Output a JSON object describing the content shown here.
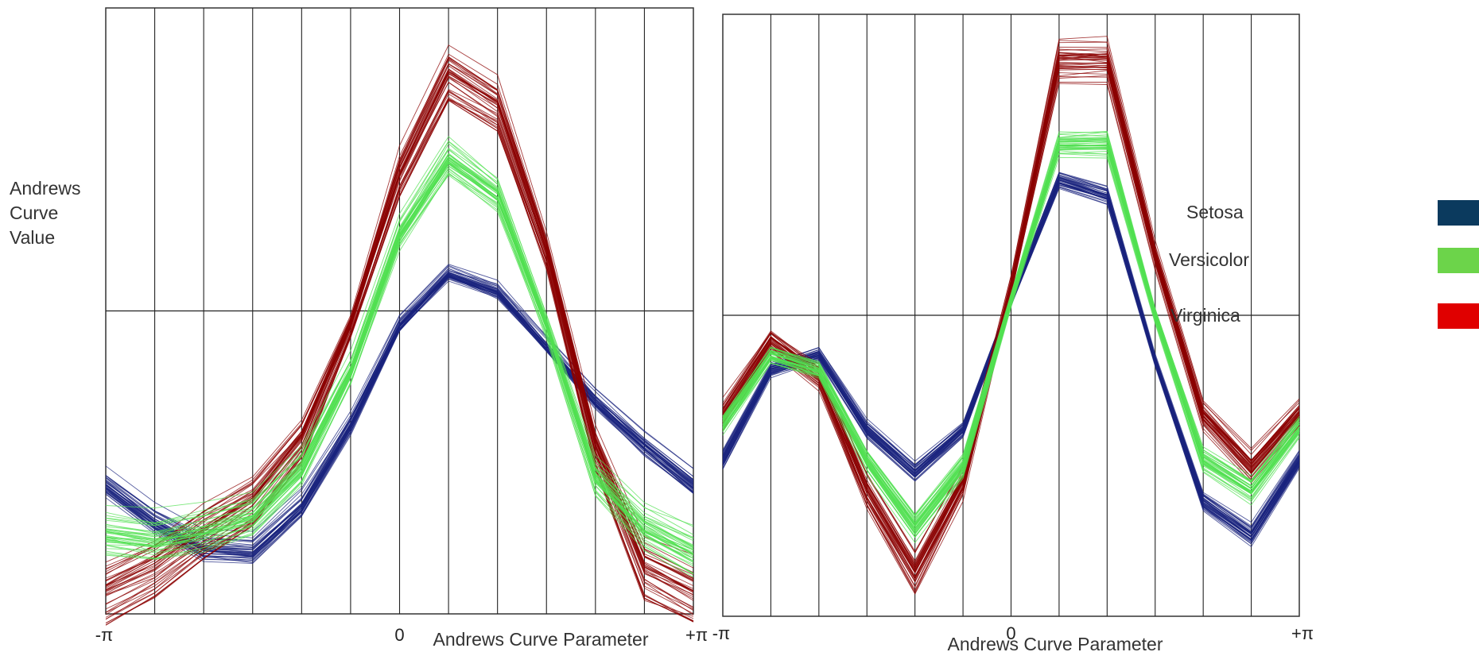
{
  "axis_title": "Andrews Curve Value",
  "axis_title_lines": [
    "Andrews",
    "Curve",
    "Value"
  ],
  "chart_data": [
    {
      "type": "line",
      "xlabel": "Andrews Curve Parameter",
      "xticks": [
        "-π",
        "0",
        "+π"
      ],
      "xlim": [
        -3.1416,
        3.1416
      ],
      "ylim": [
        -1,
        1
      ],
      "grid": true,
      "x": [
        -3.1416,
        -2.618,
        -2.0944,
        -1.5708,
        -1.0472,
        -0.5236,
        0,
        0.5236,
        1.0472,
        1.5708,
        2.0944,
        2.618,
        3.1416
      ],
      "series": [
        {
          "name": "Setosa",
          "color": "#1a237e",
          "values": [
            -0.58,
            -0.7,
            -0.79,
            -0.8,
            -0.65,
            -0.38,
            -0.05,
            0.12,
            0.06,
            -0.12,
            -0.3,
            -0.45,
            -0.58
          ],
          "spread": 0.06
        },
        {
          "name": "Versicolor",
          "color": "#52e052",
          "values": [
            -0.74,
            -0.76,
            -0.73,
            -0.68,
            -0.52,
            -0.2,
            0.25,
            0.5,
            0.38,
            -0.05,
            -0.55,
            -0.72,
            -0.8
          ],
          "spread": 0.08
        },
        {
          "name": "Virginica",
          "color": "#8b0000",
          "values": [
            -0.93,
            -0.85,
            -0.73,
            -0.63,
            -0.43,
            -0.05,
            0.45,
            0.78,
            0.68,
            0.2,
            -0.45,
            -0.85,
            -0.93
          ],
          "spread": 0.09
        }
      ]
    },
    {
      "type": "line",
      "xlabel": "Andrews Curve Parameter",
      "xticks": [
        "-π",
        "0",
        "+π"
      ],
      "xlim": [
        -3.1416,
        3.1416
      ],
      "ylim": [
        -1,
        1
      ],
      "grid": true,
      "x": [
        -3.1416,
        -2.618,
        -2.0944,
        -1.5708,
        -1.0472,
        -0.5236,
        0,
        0.5236,
        1.0472,
        1.5708,
        2.0944,
        2.618,
        3.1416
      ],
      "series": [
        {
          "name": "Setosa",
          "color": "#1a237e",
          "values": [
            -0.48,
            -0.18,
            -0.13,
            -0.38,
            -0.52,
            -0.38,
            0.05,
            0.45,
            0.4,
            -0.15,
            -0.62,
            -0.73,
            -0.48
          ],
          "spread": 0.04
        },
        {
          "name": "Versicolor",
          "color": "#52e052",
          "values": [
            -0.36,
            -0.13,
            -0.18,
            -0.48,
            -0.7,
            -0.5,
            0.05,
            0.57,
            0.57,
            0.0,
            -0.48,
            -0.58,
            -0.37
          ],
          "spread": 0.05
        },
        {
          "name": "Virginica",
          "color": "#8b0000",
          "values": [
            -0.33,
            -0.08,
            -0.2,
            -0.58,
            -0.85,
            -0.55,
            0.1,
            0.85,
            0.85,
            0.2,
            -0.33,
            -0.5,
            -0.32
          ],
          "spread": 0.07
        }
      ]
    }
  ],
  "legend": [
    {
      "label": "Setosa",
      "color": "#0b3a5e"
    },
    {
      "label": "Versicolor",
      "color": "#6cd44a"
    },
    {
      "label": "Virginica",
      "color": "#e00000"
    }
  ]
}
